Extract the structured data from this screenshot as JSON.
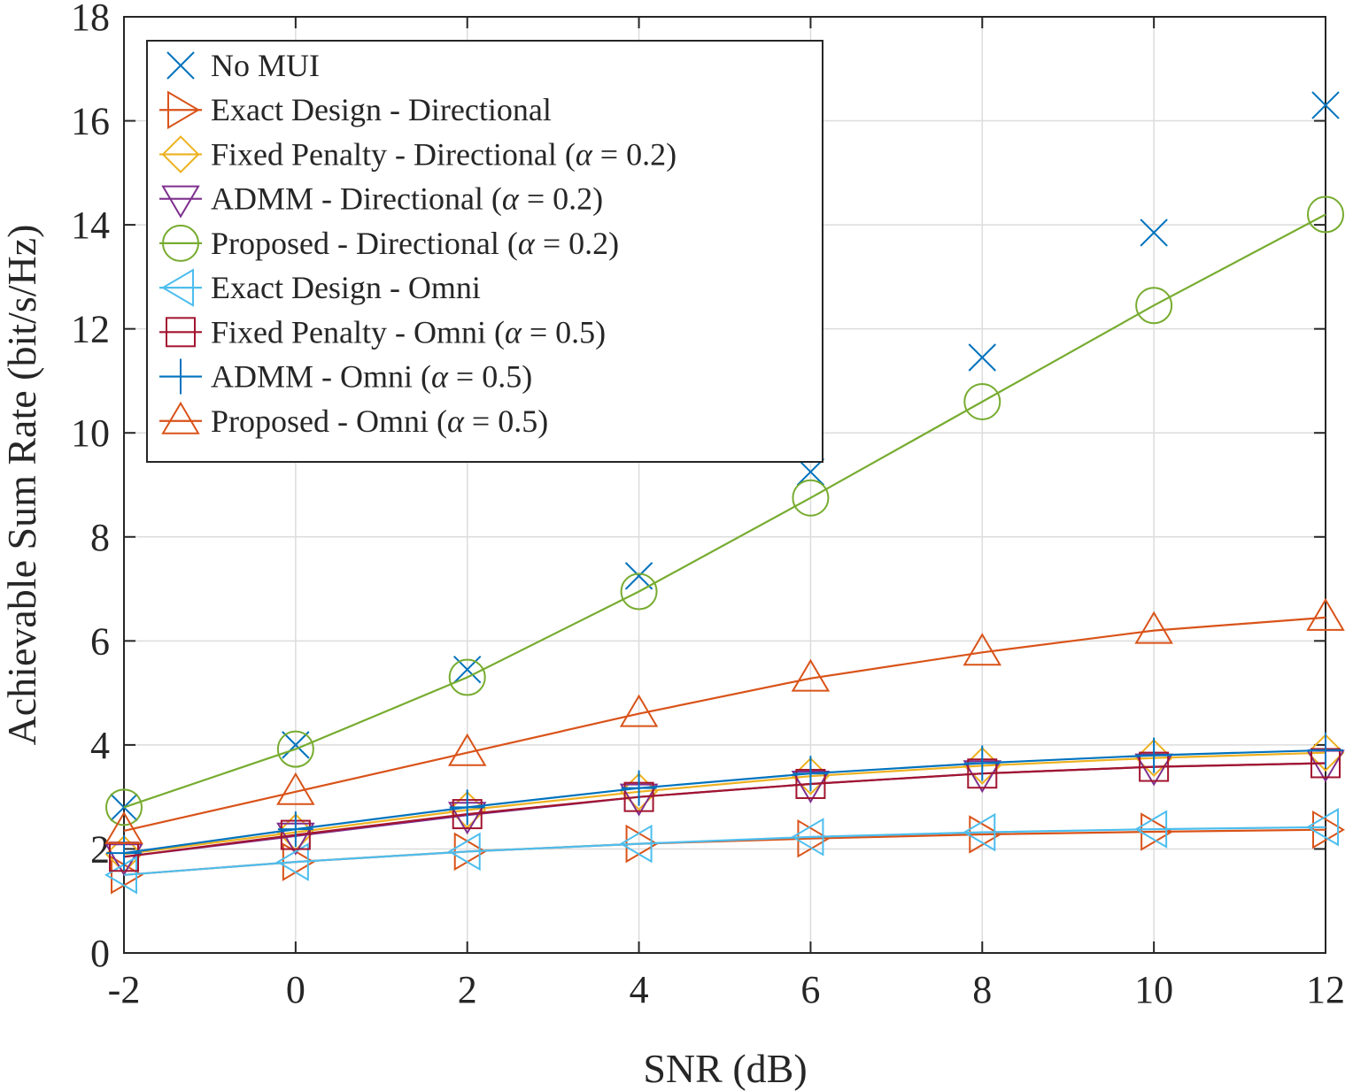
{
  "chart_data": {
    "type": "line",
    "title": "",
    "xlabel": "SNR (dB)",
    "ylabel": "Achievable Sum Rate (bit/s/Hz)",
    "xlim": [
      -2,
      12
    ],
    "ylim": [
      0,
      18
    ],
    "xticks": [
      -2,
      0,
      2,
      4,
      6,
      8,
      10,
      12
    ],
    "xtick_labels": [
      "-2",
      "0",
      "2",
      "4",
      "6",
      "8",
      "10",
      "12"
    ],
    "yticks": [
      0,
      2,
      4,
      6,
      8,
      10,
      12,
      14,
      16,
      18
    ],
    "ytick_labels": [
      "0",
      "2",
      "4",
      "6",
      "8",
      "10",
      "12",
      "14",
      "16",
      "18"
    ],
    "grid": true,
    "legend_position": "top-left",
    "x": [
      -2,
      0,
      2,
      4,
      6,
      8,
      10,
      12
    ],
    "series": [
      {
        "name": "No MUI",
        "label_parts": [
          "No MUI"
        ],
        "color": "#0072BD",
        "marker": "x",
        "line": false,
        "values": [
          2.8,
          4.0,
          5.45,
          7.25,
          9.25,
          11.45,
          13.85,
          16.3
        ]
      },
      {
        "name": "Exact Design - Directional",
        "label_parts": [
          "Exact Design - Directional"
        ],
        "color": "#D95319",
        "marker": "triangle-right",
        "line": true,
        "values": [
          1.5,
          1.75,
          1.95,
          2.1,
          2.2,
          2.28,
          2.33,
          2.37
        ]
      },
      {
        "name": "Fixed Penalty - Directional (α = 0.2)",
        "label_parts": [
          "Fixed Penalty - Directional (",
          "α",
          " = 0.2)"
        ],
        "color": "#EDB120",
        "marker": "diamond",
        "line": true,
        "values": [
          1.9,
          2.32,
          2.75,
          3.1,
          3.4,
          3.6,
          3.75,
          3.85
        ]
      },
      {
        "name": "ADMM - Directional (α = 0.2)",
        "label_parts": [
          "ADMM - Directional (",
          "α",
          " = 0.2)"
        ],
        "color": "#7E2F8E",
        "marker": "triangle-down",
        "line": true,
        "values": [
          1.85,
          2.25,
          2.65,
          3.0,
          3.25,
          3.45,
          3.58,
          3.65
        ]
      },
      {
        "name": "Proposed - Directional (α = 0.2)",
        "label_parts": [
          "Proposed - Directional (",
          "α",
          " = 0.2)"
        ],
        "color": "#77AC30",
        "marker": "circle",
        "line": true,
        "values": [
          2.8,
          3.92,
          5.3,
          6.95,
          8.75,
          10.6,
          12.45,
          14.2
        ]
      },
      {
        "name": "Exact Design - Omni",
        "label_parts": [
          "Exact Design - Omni"
        ],
        "color": "#4DBEEE",
        "marker": "triangle-left",
        "line": true,
        "values": [
          1.5,
          1.75,
          1.95,
          2.1,
          2.23,
          2.32,
          2.38,
          2.42
        ]
      },
      {
        "name": "Fixed Penalty - Omni (α = 0.5)",
        "label_parts": [
          "Fixed Penalty - Omni (",
          "α",
          " = 0.5)"
        ],
        "color": "#A2142F",
        "marker": "square",
        "line": true,
        "values": [
          1.85,
          2.27,
          2.67,
          3.0,
          3.25,
          3.45,
          3.58,
          3.65
        ]
      },
      {
        "name": "ADMM - Omni (α = 0.5)",
        "label_parts": [
          "ADMM - Omni (",
          "α",
          " = 0.5)"
        ],
        "color": "#0072BD",
        "marker": "plus",
        "line": true,
        "values": [
          1.92,
          2.38,
          2.8,
          3.17,
          3.45,
          3.65,
          3.8,
          3.9
        ]
      },
      {
        "name": "Proposed - Omni (α = 0.5)",
        "label_parts": [
          "Proposed - Omni (",
          "α",
          " = 0.5)"
        ],
        "color": "#D95319",
        "marker": "triangle-up",
        "line": true,
        "values": [
          2.35,
          3.1,
          3.85,
          4.6,
          5.28,
          5.78,
          6.2,
          6.45
        ]
      }
    ]
  }
}
